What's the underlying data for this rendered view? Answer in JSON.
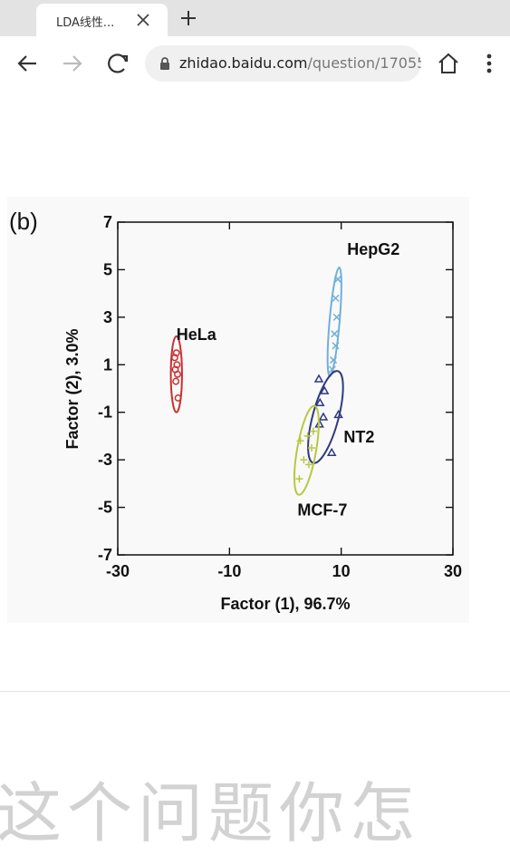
{
  "browser": {
    "tab_title": "LDA线性...",
    "url_domain": "zhidao.baidu.com",
    "url_path": "/question/17055"
  },
  "figure": {
    "panel_label": "(b)",
    "chart_data": {
      "type": "scatter",
      "xlabel": "Factor (1), 96.7%",
      "ylabel": "Factor (2), 3.0%",
      "xlim": [
        -30,
        30
      ],
      "ylim": [
        -7,
        7
      ],
      "x_ticks": [
        -30,
        -10,
        10,
        30
      ],
      "y_ticks": [
        7,
        5,
        3,
        1,
        -1,
        -3,
        -5,
        -7
      ],
      "series": [
        {
          "name": "HeLa",
          "marker": "circle",
          "color": "#c83030",
          "points": [
            [
              -19.5,
              1.5
            ],
            [
              -19.8,
              1.3
            ],
            [
              -19.4,
              1.0
            ],
            [
              -19.7,
              0.8
            ],
            [
              -19.3,
              0.6
            ],
            [
              -19.6,
              0.3
            ],
            [
              -19.2,
              -0.4
            ]
          ],
          "ellipse": {
            "cx": -19.5,
            "cy": 0.6,
            "rx": 1.0,
            "ry": 1.6,
            "angle": 0
          }
        },
        {
          "name": "HepG2",
          "marker": "x",
          "color": "#70b0d8",
          "points": [
            [
              9.4,
              4.6
            ],
            [
              9.0,
              3.8
            ],
            [
              9.2,
              3.0
            ],
            [
              8.8,
              2.3
            ],
            [
              9.0,
              1.8
            ],
            [
              8.6,
              1.2
            ],
            [
              8.4,
              0.8
            ]
          ],
          "ellipse": {
            "cx": 8.8,
            "cy": 2.8,
            "rx": 0.9,
            "ry": 2.3,
            "angle": 5
          }
        },
        {
          "name": "NT2",
          "marker": "triangle",
          "color": "#303a80",
          "points": [
            [
              6.0,
              0.4
            ],
            [
              7.0,
              -0.1
            ],
            [
              6.2,
              -0.6
            ],
            [
              6.8,
              -1.2
            ],
            [
              6.1,
              -1.5
            ],
            [
              9.5,
              -1.1
            ],
            [
              8.3,
              -2.7
            ]
          ],
          "ellipse": {
            "cx": 7.2,
            "cy": -1.2,
            "rx": 2.3,
            "ry": 2.0,
            "angle": 15
          }
        },
        {
          "name": "MCF-7",
          "marker": "plus",
          "color": "#b8c840",
          "points": [
            [
              5.0,
              -1.8
            ],
            [
              4.0,
              -2.0
            ],
            [
              2.7,
              -2.2
            ],
            [
              4.7,
              -2.5
            ],
            [
              3.3,
              -3.0
            ],
            [
              4.2,
              -3.2
            ],
            [
              2.5,
              -3.8
            ]
          ],
          "ellipse": {
            "cx": 3.8,
            "cy": -2.6,
            "rx": 1.7,
            "ry": 1.9,
            "angle": 10
          }
        }
      ]
    }
  },
  "background_text": "这个问题你怎"
}
